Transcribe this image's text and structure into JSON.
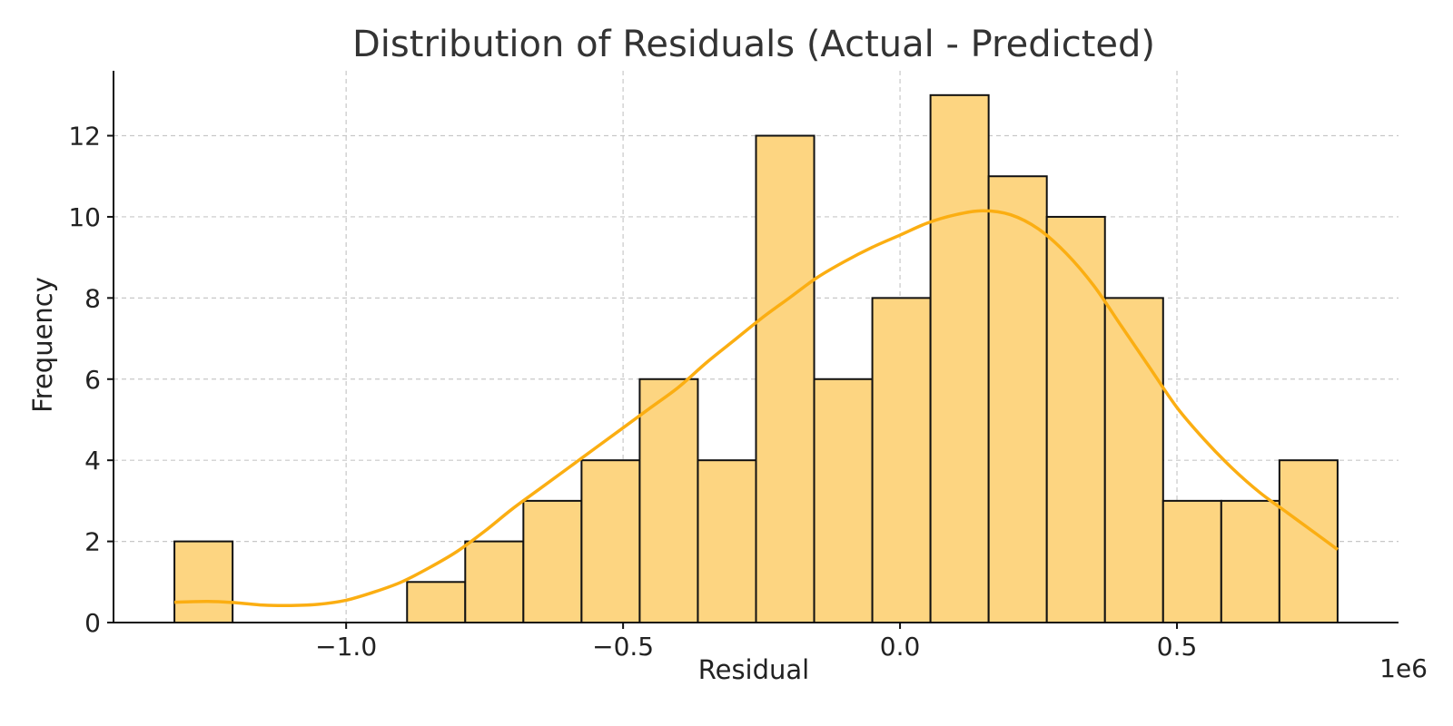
{
  "chart_data": {
    "type": "bar",
    "title": "Distribution of Residuals (Actual - Predicted)",
    "xlabel": "Residual",
    "ylabel": "Frequency",
    "x_offset_label": "1e6",
    "xlim": [
      -1.42,
      0.9
    ],
    "ylim": [
      0,
      13.6
    ],
    "x_ticks": [
      -1.0,
      -0.5,
      0.0,
      0.5
    ],
    "x_tick_labels": [
      "−1.0",
      "−0.5",
      "0.0",
      "0.5"
    ],
    "y_ticks": [
      0,
      2,
      4,
      6,
      8,
      10,
      12
    ],
    "grid": true,
    "bin_edges": [
      -1.31,
      -1.205,
      -1.1,
      -0.995,
      -0.89,
      -0.785,
      -0.68,
      -0.575,
      -0.47,
      -0.365,
      -0.26,
      -0.155,
      -0.05,
      0.055,
      0.16,
      0.265,
      0.37,
      0.475,
      0.58,
      0.685,
      0.79
    ],
    "counts": [
      2,
      0,
      0,
      0,
      1,
      2,
      3,
      4,
      6,
      4,
      12,
      6,
      8,
      13,
      11,
      10,
      8,
      3,
      3,
      4
    ],
    "kde": {
      "x": [
        -1.31,
        -1.25,
        -1.2,
        -1.15,
        -1.1,
        -1.05,
        -1.0,
        -0.95,
        -0.9,
        -0.85,
        -0.8,
        -0.75,
        -0.7,
        -0.65,
        -0.6,
        -0.55,
        -0.5,
        -0.45,
        -0.4,
        -0.35,
        -0.3,
        -0.25,
        -0.2,
        -0.15,
        -0.1,
        -0.05,
        0.0,
        0.05,
        0.1,
        0.15,
        0.2,
        0.25,
        0.3,
        0.35,
        0.4,
        0.45,
        0.5,
        0.55,
        0.6,
        0.65,
        0.7,
        0.75,
        0.79
      ],
      "y": [
        0.5,
        0.52,
        0.49,
        0.43,
        0.42,
        0.45,
        0.55,
        0.75,
        1.0,
        1.35,
        1.75,
        2.25,
        2.8,
        3.3,
        3.8,
        4.3,
        4.8,
        5.3,
        5.8,
        6.4,
        6.95,
        7.5,
        8.0,
        8.5,
        8.9,
        9.25,
        9.55,
        9.85,
        10.05,
        10.15,
        10.05,
        9.7,
        9.1,
        8.3,
        7.3,
        6.3,
        5.3,
        4.5,
        3.8,
        3.2,
        2.7,
        2.2,
        1.8
      ]
    },
    "colors": {
      "bar_fill": "#fdd581",
      "bar_edge": "#111111",
      "kde_line": "#fbae12"
    }
  }
}
